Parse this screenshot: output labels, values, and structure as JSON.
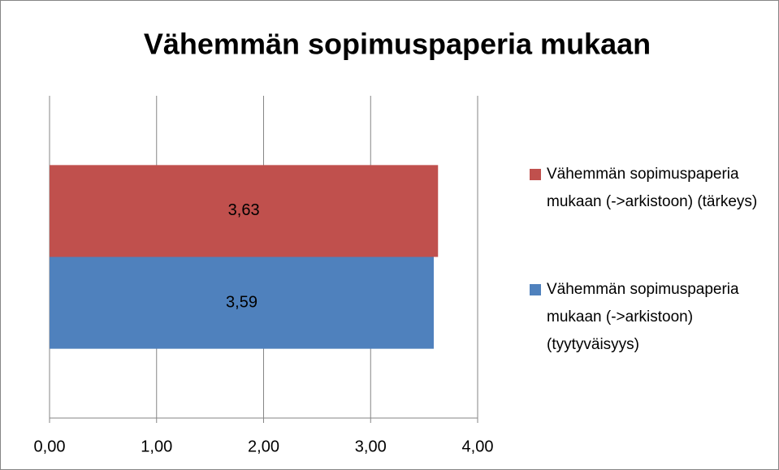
{
  "chart_data": {
    "type": "barh",
    "title": "Vähemmän sopimuspaperia mukaan",
    "categories": [
      null
    ],
    "series": [
      {
        "name": "Vähemmän sopimuspaperia mukaan (->arkistoon) (tärkeys)",
        "color": "#c0504d",
        "values": [
          3.63
        ],
        "value_labels": [
          "3,63"
        ]
      },
      {
        "name": "Vähemmän sopimuspaperia mukaan (->arkistoon) (tyytyväisyys)",
        "color": "#4f81bd",
        "values": [
          3.59
        ],
        "value_labels": [
          "3,59"
        ]
      }
    ],
    "xlim": [
      0,
      4
    ],
    "xticks": [
      {
        "value": 0,
        "label": "0,00"
      },
      {
        "value": 1,
        "label": "1,00"
      },
      {
        "value": 2,
        "label": "2,00"
      },
      {
        "value": 3,
        "label": "3,00"
      },
      {
        "value": 4,
        "label": "4,00"
      }
    ],
    "grid": true,
    "legend": "right"
  }
}
